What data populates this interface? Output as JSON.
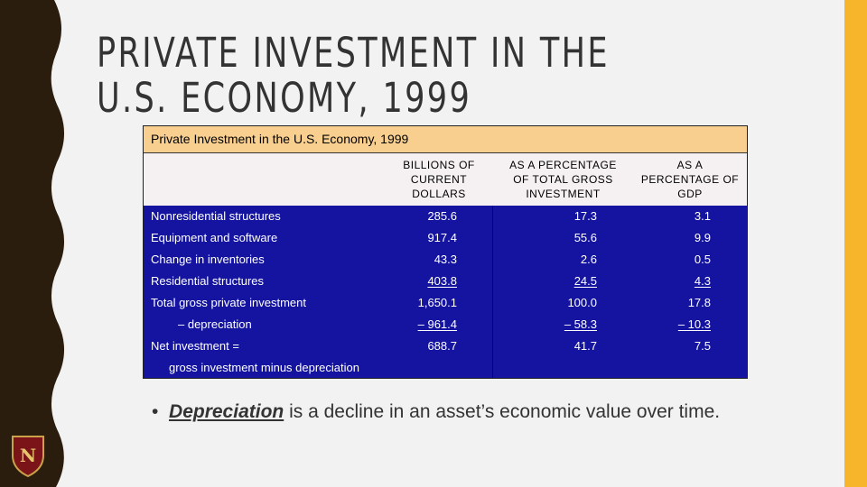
{
  "title": "PRIVATE INVESTMENT IN THE U.S. ECONOMY, 1999",
  "table": {
    "caption": "Private Investment in the U.S. Economy, 1999",
    "columns": [
      "BILLIONS OF CURRENT DOLLARS",
      "AS A PERCENTAGE OF TOTAL GROSS INVESTMENT",
      "AS A PERCENTAGE OF GDP"
    ],
    "rows": [
      {
        "label": "Nonresidential structures",
        "values": [
          "285.6",
          "17.3",
          "3.1"
        ]
      },
      {
        "label": "Equipment and software",
        "values": [
          "917.4",
          "55.6",
          "9.9"
        ]
      },
      {
        "label": "Change in inventories",
        "values": [
          "43.3",
          "2.6",
          "0.5"
        ]
      },
      {
        "label": "Residential structures",
        "values": [
          "403.8",
          "24.5",
          "4.3"
        ],
        "underline": true
      },
      {
        "label": "Total gross private investment",
        "values": [
          "1,650.1",
          "100.0",
          "17.8"
        ]
      },
      {
        "label": "– depreciation",
        "values": [
          "– 961.4",
          "– 58.3",
          "– 10.3"
        ],
        "underline": true,
        "indent": true
      },
      {
        "label": "Net investment =",
        "sublabel": "gross investment minus depreciation",
        "values": [
          "688.7",
          "41.7",
          "7.5"
        ]
      }
    ]
  },
  "bullet": {
    "term": "Depreciation",
    "text": " is a decline in an asset’s economic value over time."
  }
}
